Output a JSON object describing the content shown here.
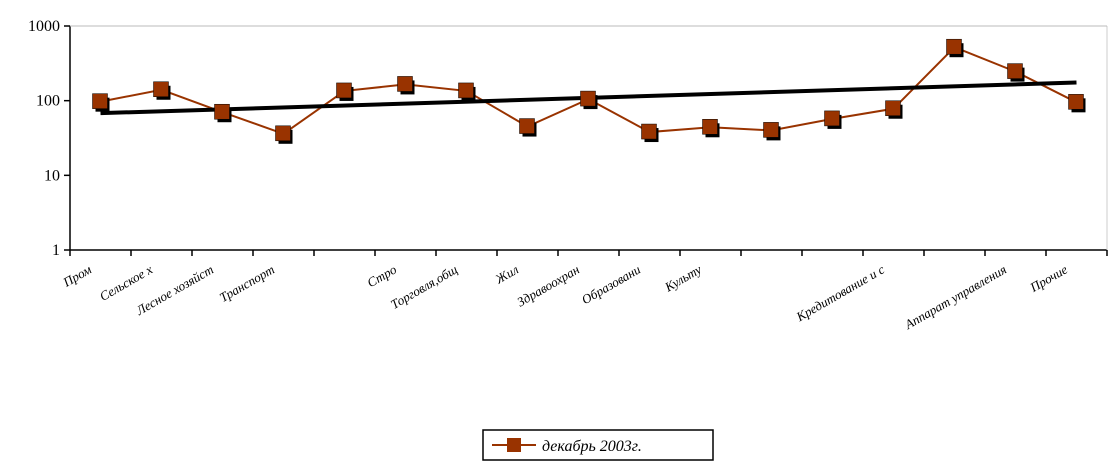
{
  "chart_data": {
    "type": "line",
    "categories": [
      "Пром",
      "Сельское х",
      "Лесное хозяйст",
      "Транспорт",
      null,
      "Стро",
      "Торговля,общ",
      "Жил",
      "Здравоохран",
      "Образовани",
      "Культу",
      null,
      null,
      "Кредитование и с",
      null,
      "Аппарат управления",
      "Прочие"
    ],
    "series": [
      {
        "name": "декабрь 2003г.",
        "color": "#993300",
        "values": [
          97,
          140,
          70,
          36,
          135,
          165,
          135,
          45,
          105,
          38,
          44,
          40,
          57,
          78,
          520,
          245,
          95
        ]
      }
    ],
    "trendline": {
      "color": "#000000",
      "values": [
        68,
        175
      ]
    },
    "log_scale": true,
    "ylim": [
      1,
      1000
    ],
    "yticks": [
      1,
      10,
      100,
      1000
    ],
    "legend": "bottom"
  }
}
